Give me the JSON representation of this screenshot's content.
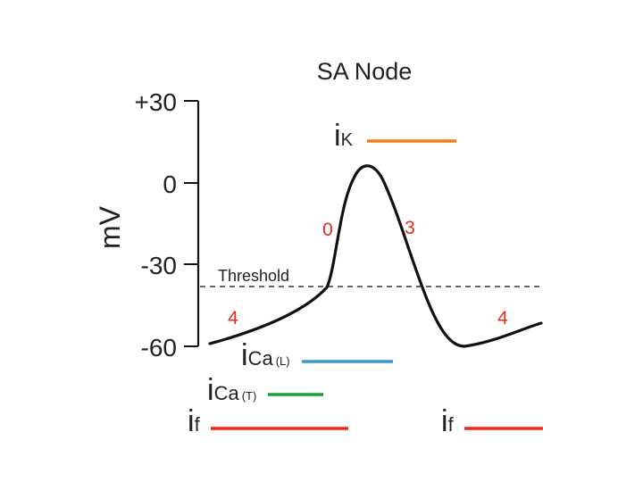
{
  "title": "SA Node",
  "y_axis": {
    "label": "mV",
    "ticks": [
      "+30",
      "0",
      "-30",
      "-60"
    ]
  },
  "threshold_label": "Threshold",
  "phase_labels": {
    "phase4_left": "4",
    "phase0": "0",
    "phase3": "3",
    "phase4_right": "4"
  },
  "currents": {
    "iK": {
      "main": "i",
      "sub": "K",
      "color": "#f07d1a"
    },
    "iCaL": {
      "main": "i",
      "sub": "Ca",
      "sub2": "(L)",
      "color": "#3a9ad0"
    },
    "iCaT": {
      "main": "i",
      "sub": "Ca",
      "sub2": "(T)",
      "color": "#1e9e3a"
    },
    "if_left": {
      "main": "i",
      "sub": "f",
      "color": "#e8291c"
    },
    "if_right": {
      "main": "i",
      "sub": "f",
      "color": "#e8291c"
    }
  },
  "colors": {
    "trace": "#111111",
    "phase_number": "#e8291c",
    "threshold_line": "#333333"
  }
}
